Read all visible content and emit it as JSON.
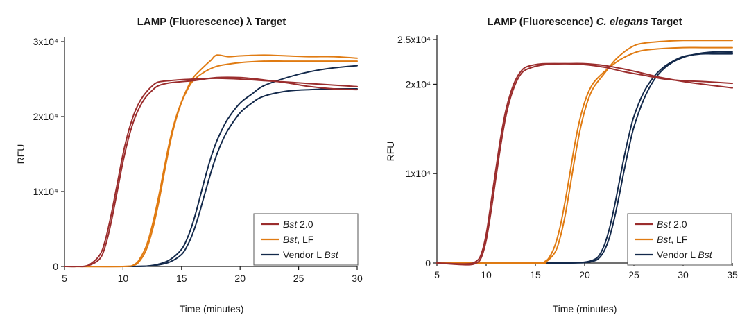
{
  "charts": [
    {
      "title_parts": [
        {
          "text": "LAMP (Fluorescence) ",
          "italic": false
        },
        {
          "text": "λ",
          "italic": false
        },
        {
          "text": " Target",
          "italic": false
        }
      ],
      "ylabel": "RFU",
      "xlabel": "Time (minutes)"
    },
    {
      "title_parts": [
        {
          "text": "LAMP (Fluorescence) ",
          "italic": false
        },
        {
          "text": "C. elegans",
          "italic": true
        },
        {
          "text": " Target",
          "italic": false
        }
      ],
      "ylabel": "RFU",
      "xlabel": "Time (minutes)"
    }
  ],
  "legend": [
    {
      "parts": [
        {
          "text": "Bst",
          "italic": true
        },
        {
          "text": " 2.0",
          "italic": false
        }
      ],
      "color": "#9b2d2d"
    },
    {
      "parts": [
        {
          "text": "Bst",
          "italic": true
        },
        {
          "text": ", LF",
          "italic": false
        }
      ],
      "color": "#e07b12"
    },
    {
      "parts": [
        {
          "text": "Vendor L ",
          "italic": false
        },
        {
          "text": "Bst",
          "italic": true
        }
      ],
      "color": "#13294b"
    }
  ],
  "chart_data": [
    {
      "type": "line",
      "title": "LAMP (Fluorescence) λ Target",
      "xlabel": "Time (minutes)",
      "ylabel": "RFU",
      "xlim": [
        5,
        30
      ],
      "ylim": [
        0,
        30000
      ],
      "x_ticks": [
        5,
        10,
        15,
        20,
        25,
        30
      ],
      "y_ticks": [
        {
          "value": 0,
          "label": "0"
        },
        {
          "value": 10000,
          "label": "1x10⁴"
        },
        {
          "value": 20000,
          "label": "2x10⁴"
        },
        {
          "value": 30000,
          "label": "3x10⁴"
        }
      ],
      "legend_position": "lower-right",
      "series": [
        {
          "name": "Bst 2.0",
          "color": "#9b2d2d",
          "x": [
            5,
            6,
            7,
            8,
            8.5,
            9,
            9.5,
            10,
            10.5,
            11,
            11.5,
            12,
            12.5,
            13,
            14,
            16,
            18,
            20,
            22,
            24,
            26,
            28,
            30
          ],
          "y": [
            0,
            0,
            150,
            1500,
            3600,
            7000,
            11000,
            15000,
            18200,
            20600,
            22200,
            23300,
            24100,
            24600,
            24800,
            25000,
            25100,
            25000,
            24800,
            24600,
            24400,
            24200,
            24000
          ]
        },
        {
          "name": "Bst 2.0",
          "color": "#9b2d2d",
          "x": [
            5,
            6,
            7,
            8,
            8.5,
            9,
            9.5,
            10,
            10.5,
            11,
            11.5,
            12,
            12.5,
            13,
            14,
            16,
            18,
            20,
            22,
            24,
            26,
            28,
            30
          ],
          "y": [
            0,
            0,
            100,
            1000,
            2800,
            6000,
            10000,
            14000,
            17300,
            19800,
            21500,
            22700,
            23500,
            24100,
            24500,
            24800,
            25200,
            25200,
            24900,
            24500,
            24000,
            23700,
            23600
          ]
        },
        {
          "name": "Bst, LF",
          "color": "#e07b12",
          "x": [
            5,
            10,
            11,
            11.5,
            12,
            12.5,
            13,
            13.5,
            14,
            14.5,
            15,
            15.5,
            16,
            17,
            17.5,
            18,
            19,
            20,
            22,
            24,
            26,
            28,
            30
          ],
          "y": [
            0,
            0,
            300,
            1200,
            2800,
            5500,
            9000,
            13000,
            16800,
            19800,
            22000,
            23800,
            25200,
            26800,
            27500,
            28200,
            28000,
            28100,
            28200,
            28100,
            28000,
            28000,
            27800
          ]
        },
        {
          "name": "Bst, LF",
          "color": "#e07b12",
          "x": [
            5,
            10,
            11,
            11.5,
            12,
            12.5,
            13,
            13.5,
            14,
            14.5,
            15,
            15.5,
            16,
            17,
            18,
            19,
            20,
            22,
            24,
            26,
            28,
            30
          ],
          "y": [
            0,
            0,
            200,
            900,
            2300,
            4800,
            8200,
            12300,
            16300,
            19500,
            21900,
            23600,
            24800,
            26000,
            26700,
            27000,
            27200,
            27400,
            27400,
            27400,
            27400,
            27400
          ]
        },
        {
          "name": "Vendor L Bst",
          "color": "#13294b",
          "x": [
            5,
            10,
            12,
            13,
            14,
            15,
            15.5,
            16,
            16.5,
            17,
            17.5,
            18,
            18.5,
            19,
            20,
            21,
            22,
            24,
            26,
            28,
            30
          ],
          "y": [
            0,
            0,
            50,
            300,
            900,
            2300,
            3800,
            6000,
            8800,
            11800,
            14500,
            16700,
            18400,
            19800,
            21800,
            23000,
            24100,
            25200,
            26000,
            26500,
            26800
          ]
        },
        {
          "name": "Vendor L Bst",
          "color": "#13294b",
          "x": [
            5,
            10,
            12,
            13,
            14,
            15,
            15.5,
            16,
            16.5,
            17,
            17.5,
            18,
            18.5,
            19,
            20,
            21,
            22,
            24,
            26,
            28,
            30
          ],
          "y": [
            0,
            0,
            50,
            200,
            600,
            1600,
            2800,
            4600,
            7000,
            9800,
            12500,
            14900,
            16800,
            18300,
            20500,
            21800,
            22700,
            23400,
            23600,
            23700,
            23700
          ]
        }
      ]
    },
    {
      "type": "line",
      "title": "LAMP (Fluorescence) C. elegans Target",
      "xlabel": "Time (minutes)",
      "ylabel": "RFU",
      "xlim": [
        5,
        35
      ],
      "ylim": [
        0,
        25000
      ],
      "x_ticks": [
        5,
        10,
        15,
        20,
        25,
        30,
        35
      ],
      "y_ticks": [
        {
          "value": 0,
          "label": "0"
        },
        {
          "value": 10000,
          "label": "1x10⁴"
        },
        {
          "value": 20000,
          "label": "2x10⁴"
        },
        {
          "value": 25000,
          "label": "2.5x10⁴"
        }
      ],
      "legend_position": "lower-right",
      "series": [
        {
          "name": "Bst 2.0",
          "color": "#9b2d2d",
          "x": [
            5,
            8,
            9,
            9.5,
            10,
            10.5,
            11,
            11.5,
            12,
            12.5,
            13,
            13.5,
            14,
            15,
            16,
            18,
            20,
            22,
            24,
            26,
            28,
            30,
            32,
            35
          ],
          "y": [
            0,
            -200,
            0,
            600,
            2500,
            5800,
            9600,
            13300,
            16400,
            18600,
            20100,
            21100,
            21600,
            22000,
            22200,
            22300,
            22300,
            22100,
            21700,
            21200,
            20700,
            20300,
            20000,
            19600
          ]
        },
        {
          "name": "Bst 2.0",
          "color": "#9b2d2d",
          "x": [
            5,
            8,
            9,
            9.5,
            10,
            10.5,
            11,
            11.5,
            12,
            12.5,
            13,
            13.5,
            14,
            15,
            16,
            18,
            20,
            22,
            24,
            26,
            28,
            30,
            32,
            35
          ],
          "y": [
            0,
            -100,
            200,
            1000,
            3200,
            6800,
            10600,
            14200,
            17100,
            19100,
            20500,
            21400,
            21900,
            22200,
            22300,
            22300,
            22200,
            21900,
            21400,
            21000,
            20600,
            20400,
            20300,
            20100
          ]
        },
        {
          "name": "Bst, LF",
          "color": "#e07b12",
          "x": [
            5,
            15,
            16,
            16.5,
            17,
            17.5,
            18,
            18.5,
            19,
            19.5,
            20,
            20.5,
            21,
            22,
            23,
            24,
            25,
            26,
            28,
            30,
            32,
            35
          ],
          "y": [
            0,
            0,
            200,
            800,
            2000,
            4000,
            6800,
            10000,
            13300,
            16000,
            18000,
            19400,
            20300,
            21400,
            22300,
            23000,
            23500,
            23800,
            24000,
            24100,
            24100,
            24100
          ]
        },
        {
          "name": "Bst, LF",
          "color": "#e07b12",
          "x": [
            5,
            15,
            16,
            17,
            17.5,
            18,
            18.5,
            19,
            19.5,
            20,
            20.5,
            21,
            22,
            23,
            24,
            25,
            26,
            28,
            30,
            32,
            35
          ],
          "y": [
            0,
            0,
            100,
            1200,
            2800,
            5200,
            8400,
            11700,
            14700,
            17000,
            18700,
            19800,
            21200,
            22600,
            23600,
            24300,
            24600,
            24800,
            24900,
            24900,
            24900
          ]
        },
        {
          "name": "Vendor L Bst",
          "color": "#13294b",
          "x": [
            5,
            15,
            18,
            20,
            21,
            21.5,
            22,
            22.5,
            23,
            23.5,
            24,
            24.5,
            25,
            26,
            27,
            28,
            29,
            30,
            31,
            32,
            33,
            35
          ],
          "y": [
            0,
            0,
            0,
            100,
            400,
            900,
            2000,
            3800,
            6200,
            9000,
            11800,
            14300,
            16400,
            19100,
            20800,
            21900,
            22600,
            23100,
            23300,
            23400,
            23400,
            23400
          ]
        },
        {
          "name": "Vendor L Bst",
          "color": "#13294b",
          "x": [
            5,
            15,
            18,
            20,
            21,
            21.5,
            22,
            22.5,
            23,
            23.5,
            24,
            24.5,
            25,
            26,
            27,
            28,
            29,
            30,
            31,
            32,
            33,
            35
          ],
          "y": [
            0,
            0,
            0,
            50,
            250,
            600,
            1400,
            2800,
            4900,
            7500,
            10300,
            12900,
            15200,
            18300,
            20400,
            21700,
            22500,
            23000,
            23300,
            23500,
            23600,
            23600
          ]
        }
      ]
    }
  ]
}
